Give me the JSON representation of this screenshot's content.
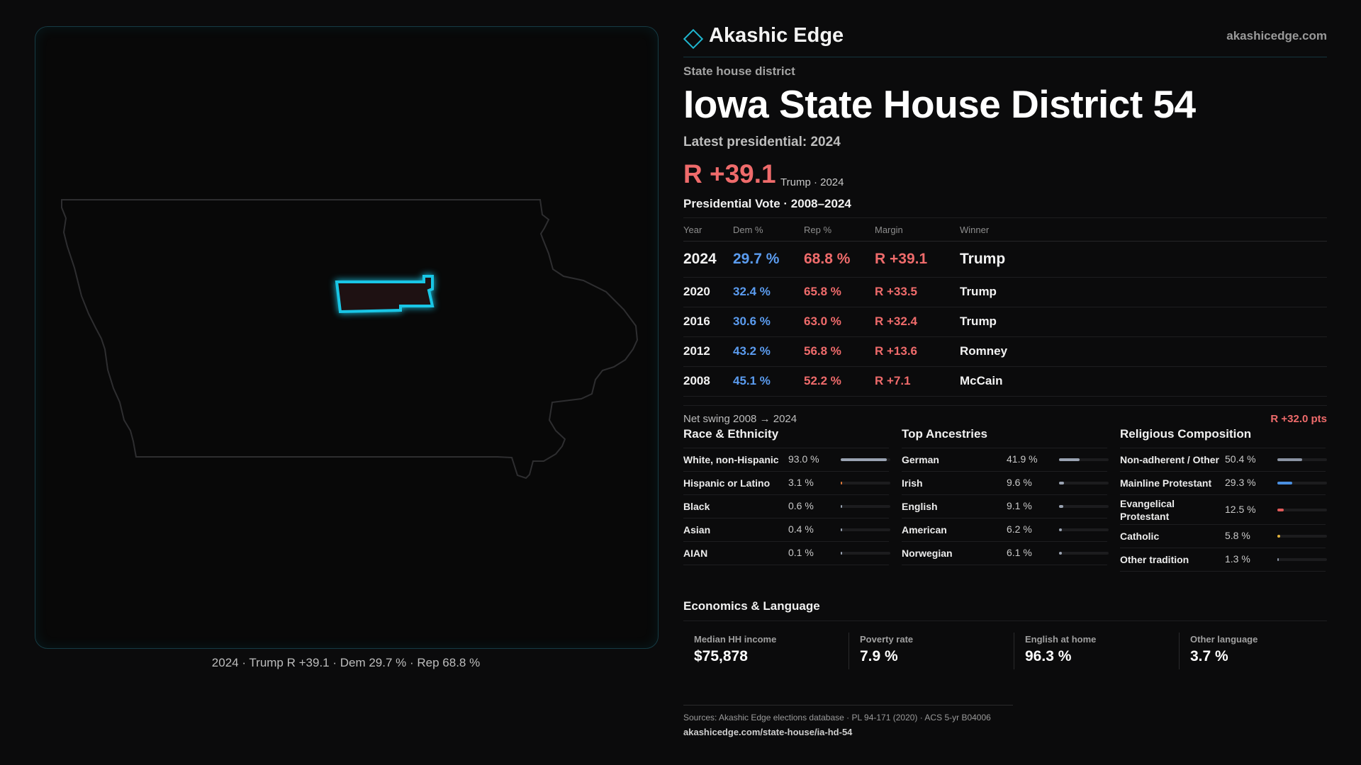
{
  "brand": {
    "name": "Akashic Edge",
    "url": "akashicedge.com",
    "accent": "#1fb6cf"
  },
  "kicker": "State house district",
  "title": "Iowa State House District 54",
  "latest_label": "Latest presidential: 2024",
  "headline_margin": "R +39.1",
  "headline_sub": "Trump · 2024",
  "vote_title": "Presidential Vote · 2008–2024",
  "vote_headers": {
    "year": "Year",
    "dem": "Dem %",
    "rep": "Rep %",
    "margin": "Margin",
    "winner": "Winner"
  },
  "vote_rows": [
    {
      "year": "2024",
      "dem": "29.7 %",
      "rep": "68.8 %",
      "margin": "R +39.1",
      "winner": "Trump"
    },
    {
      "year": "2020",
      "dem": "32.4 %",
      "rep": "65.8 %",
      "margin": "R +33.5",
      "winner": "Trump"
    },
    {
      "year": "2016",
      "dem": "30.6 %",
      "rep": "63.0 %",
      "margin": "R +32.4",
      "winner": "Trump"
    },
    {
      "year": "2012",
      "dem": "43.2 %",
      "rep": "56.8 %",
      "margin": "R +13.6",
      "winner": "Romney"
    },
    {
      "year": "2008",
      "dem": "45.1 %",
      "rep": "52.2 %",
      "margin": "R +7.1",
      "winner": "McCain"
    }
  ],
  "swing": {
    "label": "Net swing 2008 → 2024",
    "value": "R +32.0 pts"
  },
  "race": {
    "title": "Race & Ethnicity",
    "items": [
      {
        "label": "White, non-Hispanic",
        "value": "93.0 %",
        "pct": 93.0,
        "color": "#9aa3b2"
      },
      {
        "label": "Hispanic or Latino",
        "value": "3.1 %",
        "pct": 3.1,
        "color": "#e07a3a"
      },
      {
        "label": "Black",
        "value": "0.6 %",
        "pct": 0.6,
        "color": "#9aa3b2"
      },
      {
        "label": "Asian",
        "value": "0.4 %",
        "pct": 0.4,
        "color": "#9aa3b2"
      },
      {
        "label": "AIAN",
        "value": "0.1 %",
        "pct": 0.1,
        "color": "#9aa3b2"
      }
    ]
  },
  "ancestry": {
    "title": "Top Ancestries",
    "items": [
      {
        "label": "German",
        "value": "41.9 %",
        "pct": 41.9,
        "color": "#9aa3b2"
      },
      {
        "label": "Irish",
        "value": "9.6 %",
        "pct": 9.6,
        "color": "#9aa3b2"
      },
      {
        "label": "English",
        "value": "9.1 %",
        "pct": 9.1,
        "color": "#9aa3b2"
      },
      {
        "label": "American",
        "value": "6.2 %",
        "pct": 6.2,
        "color": "#9aa3b2"
      },
      {
        "label": "Norwegian",
        "value": "6.1 %",
        "pct": 6.1,
        "color": "#9aa3b2"
      }
    ]
  },
  "religion": {
    "title": "Religious Composition",
    "items": [
      {
        "label": "Non-adherent / Other",
        "value": "50.4 %",
        "pct": 50.4,
        "color": "#8a93a3"
      },
      {
        "label": "Mainline Protestant",
        "value": "29.3 %",
        "pct": 29.3,
        "color": "#4a8fe0"
      },
      {
        "label": "Evangelical Protestant",
        "value": "12.5 %",
        "pct": 12.5,
        "color": "#e05a5a"
      },
      {
        "label": "Catholic",
        "value": "5.8 %",
        "pct": 5.8,
        "color": "#e0b03a"
      },
      {
        "label": "Other tradition",
        "value": "1.3 %",
        "pct": 1.3,
        "color": "#8a93a3"
      }
    ]
  },
  "economics": {
    "title": "Economics & Language",
    "cells": [
      {
        "label": "Median HH income",
        "value": "$75,878"
      },
      {
        "label": "Poverty rate",
        "value": "7.9 %"
      },
      {
        "label": "English at home",
        "value": "96.3 %"
      },
      {
        "label": "Other language",
        "value": "3.7 %"
      }
    ]
  },
  "footer": {
    "sources": "Sources: Akashic Edge elections database · PL 94-171 (2020) · ACS 5-yr B04006",
    "url": "akashicedge.com/state-house/ia-hd-54"
  },
  "map_caption": "2024 · Trump R +39.1 · Dem 29.7 % · Rep 68.8 %",
  "colors": {
    "dem": "#5b9cf0",
    "rep": "#ef6b6b",
    "district_outline": "#19c6e6"
  }
}
